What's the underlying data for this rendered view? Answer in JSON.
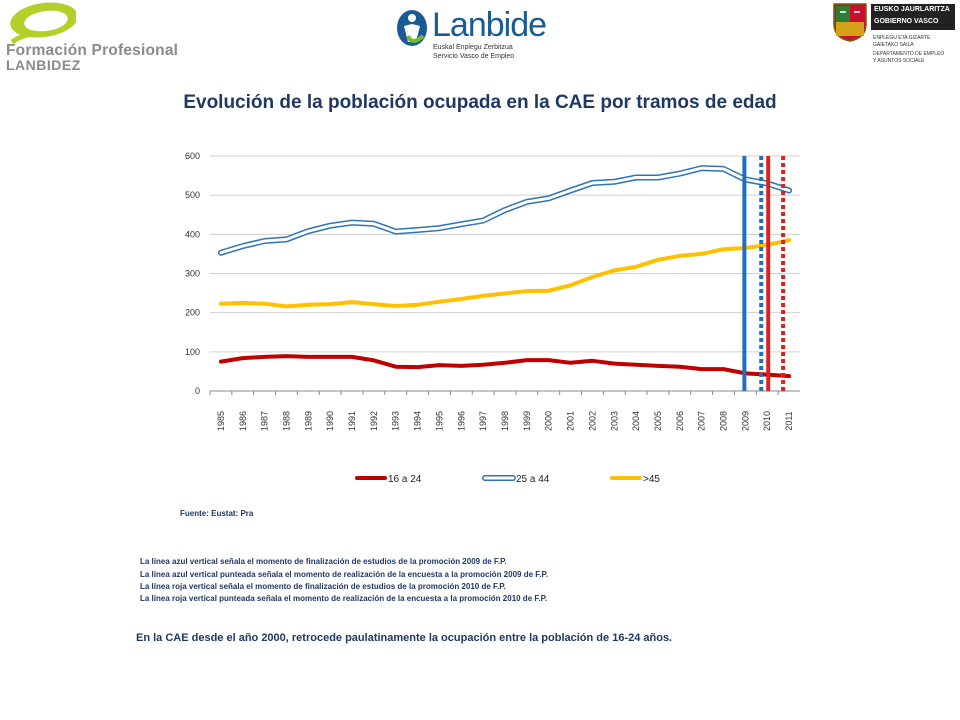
{
  "header": {
    "left_logo_line1": "Formación Profesional",
    "left_logo_line2": "LANBIDEZ",
    "center_logo_name": "Lanbide",
    "center_logo_sub1": "Euskal Enplegu Zerbitzua",
    "center_logo_sub2": "Servicio Vasco de Empleo",
    "right_logo_line1": "EUSKO JAURLARITZA",
    "right_logo_line2": "GOBIERNO VASCO",
    "right_logo_sub1": "ENPLEGU ETA GIZARTE",
    "right_logo_sub2": "GAIETAKO SAILA",
    "right_logo_sub3": "DEPARTAMENTO DE EMPLEO",
    "right_logo_sub4": "Y ASUNTOS SOCIALE"
  },
  "colors": {
    "title": "#1f3864",
    "series_16_24": "#c00000",
    "series_25_44": "#2e75b6",
    "series_45": "#ffc000",
    "vline_2009": "#1f6fbf",
    "vline_2010": "#e02020"
  },
  "chart_data": {
    "type": "line",
    "title": "Evolución de la población ocupada en la CAE por tramos de edad",
    "x": [
      "1985",
      "1986",
      "1987",
      "1988",
      "1989",
      "1990",
      "1991",
      "1992",
      "1993",
      "1994",
      "1995",
      "1996",
      "1997",
      "1998",
      "1999",
      "2000",
      "2001",
      "2002",
      "2003",
      "2004",
      "2005",
      "2006",
      "2007",
      "2008",
      "2009",
      "2010",
      "2011"
    ],
    "ylim": [
      0,
      600
    ],
    "yticks": [
      "0",
      "100",
      "200",
      "300",
      "400",
      "500",
      "600"
    ],
    "grid": true,
    "legend_position": "bottom",
    "series": [
      {
        "name": "16 a 24",
        "values": [
          75,
          84,
          87,
          89,
          87,
          87,
          87,
          78,
          62,
          61,
          66,
          64,
          67,
          72,
          79,
          79,
          72,
          77,
          70,
          67,
          64,
          62,
          56,
          56,
          45,
          42,
          38
        ]
      },
      {
        "name": "25 a 44",
        "values": [
          353,
          370,
          383,
          387,
          408,
          422,
          430,
          427,
          407,
          411,
          416,
          426,
          435,
          462,
          483,
          492,
          512,
          531,
          534,
          545,
          545,
          555,
          569,
          567,
          540,
          530,
          512
        ]
      },
      {
        "name": ">45",
        "values": [
          223,
          225,
          223,
          216,
          220,
          222,
          227,
          222,
          217,
          220,
          228,
          235,
          243,
          249,
          255,
          256,
          270,
          291,
          308,
          317,
          335,
          345,
          350,
          362,
          365,
          373,
          385
        ]
      }
    ],
    "vertical_markers": [
      {
        "year": "2009",
        "style": "solid",
        "color": "blue"
      },
      {
        "year": "2010",
        "style": "dotted",
        "color": "blue"
      },
      {
        "year": "2010",
        "style": "solid",
        "color": "red"
      },
      {
        "year": "2011",
        "style": "dotted",
        "color": "red"
      }
    ]
  },
  "source": "Fuente: Eustat: Pra",
  "notes": [
    "La línea azul vertical señala el momento de finalización de estudios de la promoción 2009 de F.P.",
    "La línea azul vertical punteada señala el momento de realización de la encuesta a la promoción 2009 de F.P.",
    "La línea roja vertical señala el momento de finalización de estudios de la promoción 2010 de F.P.",
    "La línea roja vertical punteada señala el momento de realización de la encuesta a la promoción 2010 de F.P."
  ],
  "conclusion": "En la CAE desde el año 2000, retrocede paulatinamente la ocupación entre la población de 16-24 años."
}
